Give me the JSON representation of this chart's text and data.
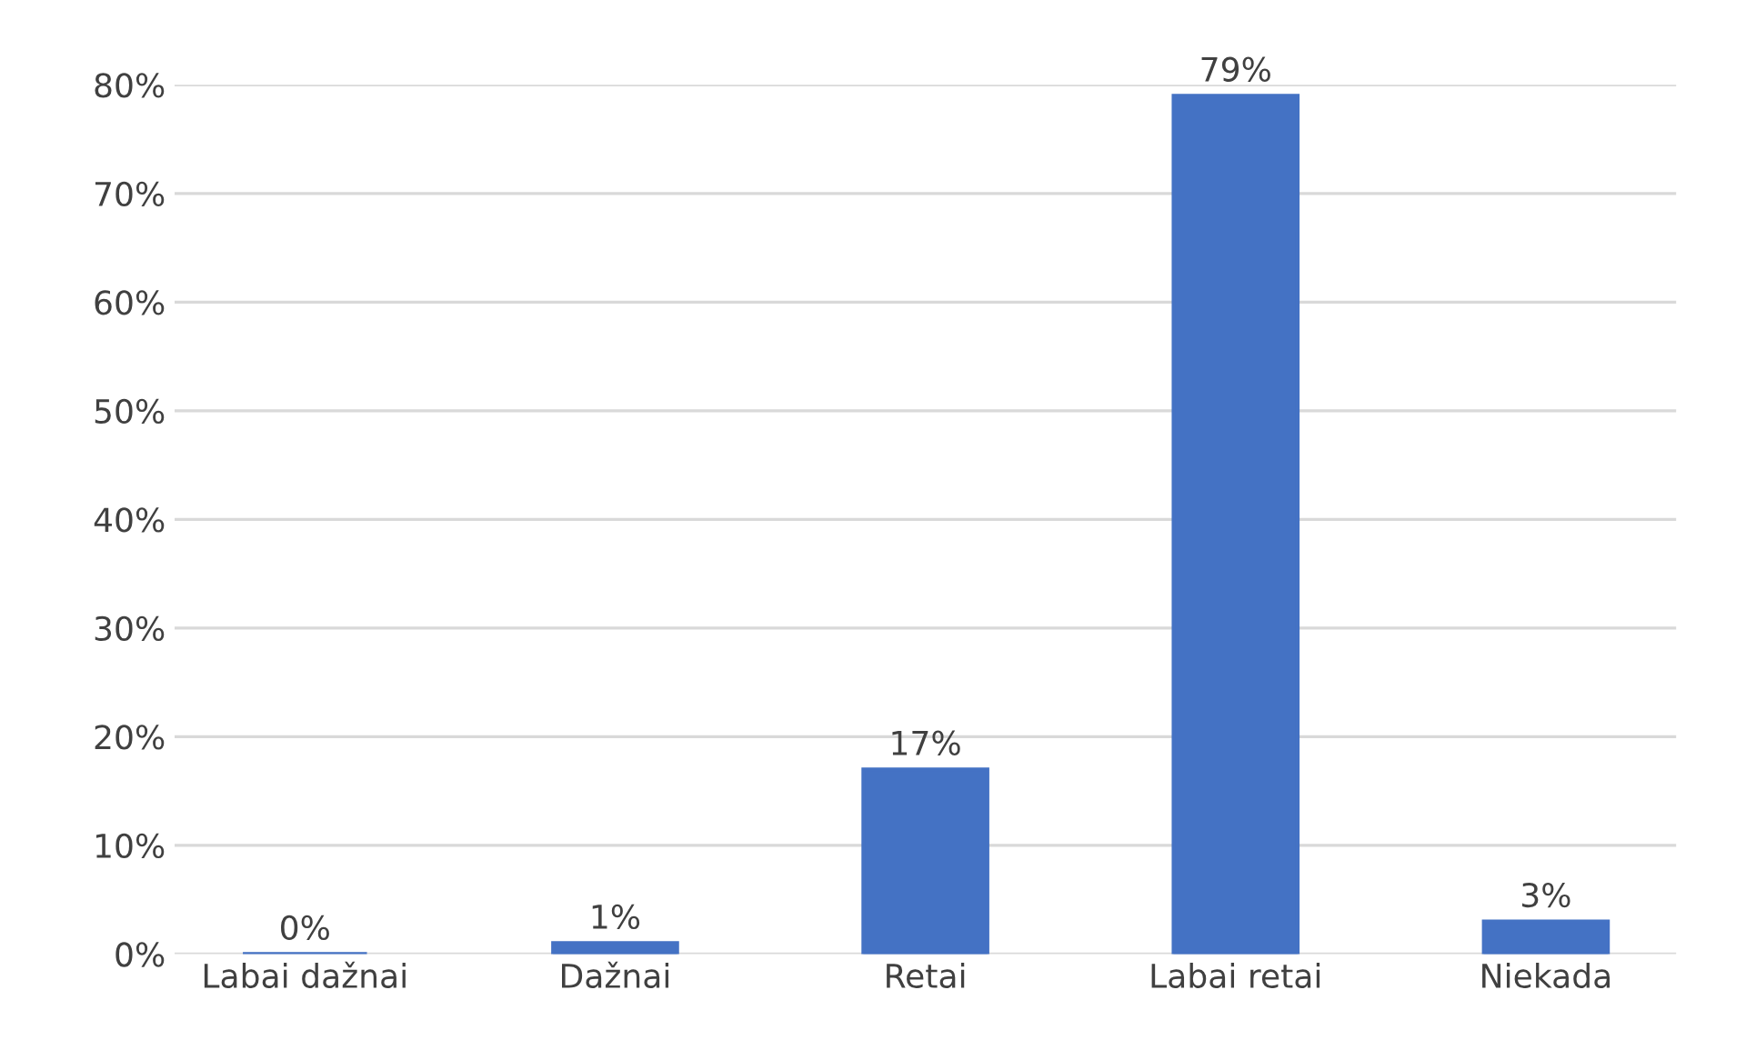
{
  "chart_data": {
    "type": "bar",
    "categories": [
      "Labai dažnai",
      "Dažnai",
      "Retai",
      "Labai retai",
      "Niekada"
    ],
    "values": [
      0,
      1,
      17,
      79,
      3
    ],
    "value_labels": [
      "0%",
      "1%",
      "17%",
      "79%",
      "3%"
    ],
    "color": "#4472c4",
    "ylim": [
      0,
      80
    ],
    "yticks": [
      {
        "value": 0,
        "label": "0%"
      },
      {
        "value": 10,
        "label": "10%"
      },
      {
        "value": 20,
        "label": "20%"
      },
      {
        "value": 30,
        "label": "30%"
      },
      {
        "value": 40,
        "label": "40%"
      },
      {
        "value": 50,
        "label": "50%"
      },
      {
        "value": 60,
        "label": "60%"
      },
      {
        "value": 70,
        "label": "70%"
      },
      {
        "value": 80,
        "label": "80%"
      }
    ],
    "grid": "y"
  }
}
